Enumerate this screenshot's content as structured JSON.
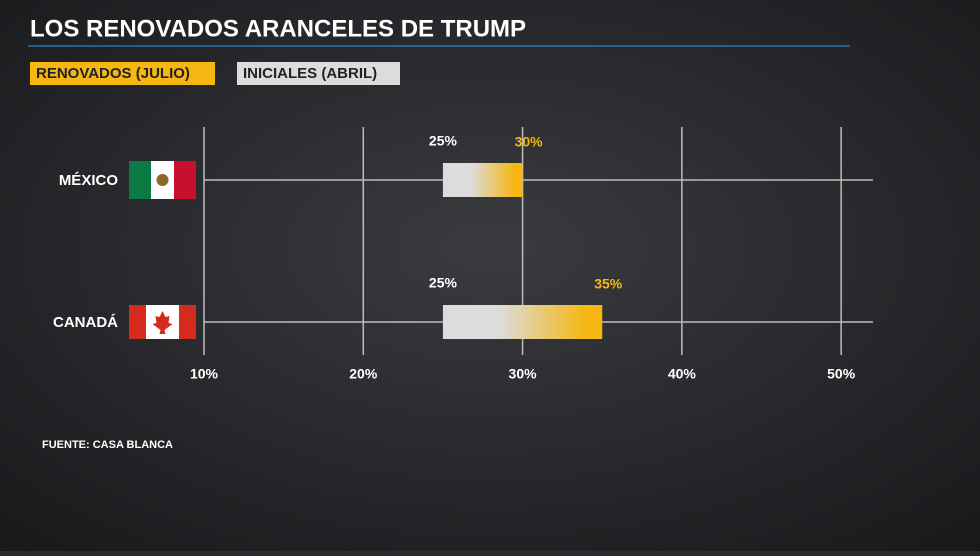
{
  "chart_data": {
    "type": "bar",
    "orientation": "horizontal",
    "title": "LOS RENOVADOS ARANCELES DE TRUMP",
    "source": "FUENTE: CASA BLANCA",
    "categories": [
      "MÉXICO",
      "CANADÁ"
    ],
    "series": [
      {
        "name": "INICIALES (ABRIL)",
        "color": "#dcdcdc",
        "values": [
          25,
          25
        ],
        "value_labels": [
          "25%",
          "25%"
        ]
      },
      {
        "name": "RENOVADOS (JULIO)",
        "color": "#f6b713",
        "values": [
          30,
          35
        ],
        "value_labels": [
          "30%",
          "35%"
        ]
      }
    ],
    "xlim": [
      10,
      52
    ],
    "xticks": [
      {
        "value": 10,
        "label": "10%"
      },
      {
        "value": 20,
        "label": "20%"
      },
      {
        "value": 30,
        "label": "30%"
      },
      {
        "value": 40,
        "label": "40%"
      },
      {
        "value": 50,
        "label": "50%"
      }
    ],
    "grid": true
  }
}
